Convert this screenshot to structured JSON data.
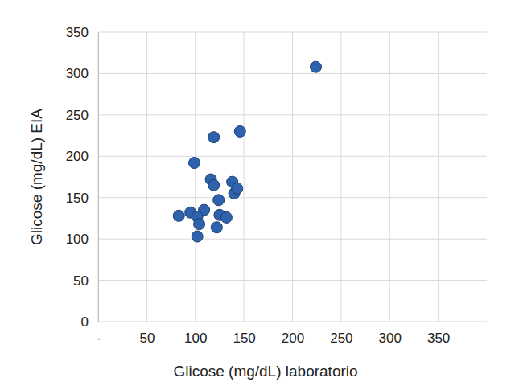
{
  "chart_data": {
    "type": "scatter",
    "x_label": "Glicose (mg/dL) laboratorio",
    "y_label": "Glicose (mg/dL) EIA",
    "x": [
      224,
      146,
      119,
      99,
      116,
      119,
      138,
      140,
      143,
      124,
      109,
      95,
      83,
      102,
      125,
      132,
      104,
      102,
      122
    ],
    "values": [
      308,
      230,
      223,
      192,
      172,
      165,
      169,
      155,
      161,
      147,
      135,
      132,
      128,
      127,
      129,
      126,
      118,
      103,
      114
    ],
    "color": "#2f62ad",
    "marker": "circle",
    "xlim": [
      0,
      400
    ],
    "xticks": [
      {
        "value": 0,
        "label": "-"
      },
      50,
      100,
      150,
      200,
      250,
      300,
      350
    ],
    "ylim": [
      0,
      350
    ],
    "yticks": [
      0,
      50,
      100,
      150,
      200,
      250,
      300,
      350
    ],
    "grid": true
  }
}
